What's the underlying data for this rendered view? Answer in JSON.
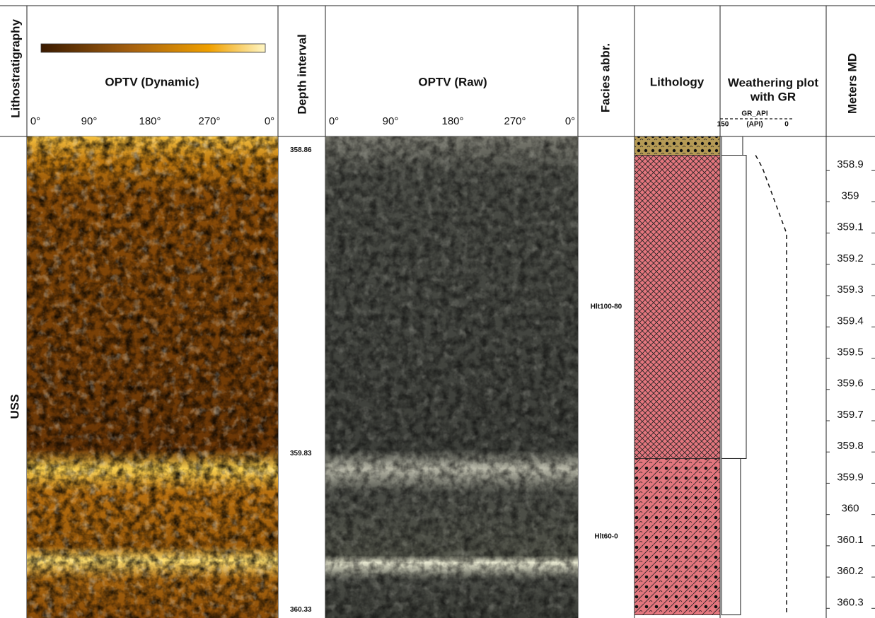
{
  "headers": {
    "lithostratigraphy": "Lithostratigraphy",
    "optv_dynamic": "OPTV (Dynamic)",
    "depth_interval": "Depth interval",
    "optv_raw": "OPTV (Raw)",
    "facies": "Facies abbr.",
    "lithology": "Lithology",
    "weathering": [
      "Weathering plot",
      "with GR"
    ],
    "meters": "Meters MD"
  },
  "unit": "USS",
  "azimuth_ticks": [
    "0°",
    "90°",
    "180°",
    "270°",
    "0°"
  ],
  "depth_lim": [
    358.8,
    360.34
  ],
  "depth_intervals": [
    358.86,
    359.83,
    360.33
  ],
  "facies": [
    {
      "label": "Hlt100-80",
      "top": 358.86,
      "bottom": 359.83
    },
    {
      "label": "Hlt60-0",
      "top": 359.83,
      "bottom": 360.33
    }
  ],
  "lithology": [
    {
      "top": 358.8,
      "bottom": 358.86,
      "pattern": "sand"
    },
    {
      "top": 358.86,
      "bottom": 359.83,
      "pattern": "cross"
    },
    {
      "top": 359.83,
      "bottom": 360.33,
      "pattern": "dots"
    }
  ],
  "weathering": {
    "xlim": [
      0,
      5
    ],
    "intervals": [
      {
        "top": 358.8,
        "bottom": 358.86,
        "value": 1.07
      },
      {
        "top": 358.86,
        "bottom": 359.83,
        "value": 1.25
      },
      {
        "top": 359.83,
        "bottom": 360.33,
        "value": 0.96
      }
    ]
  },
  "gr": {
    "title": "GR_API",
    "unit": "(API)",
    "xlim": [
      150,
      0
    ],
    "xticks": [
      150,
      0
    ],
    "depth": [
      358.86,
      358.9,
      359.11,
      360.33
    ],
    "values": [
      73,
      57,
      0,
      0
    ]
  },
  "md_ticks": [
    358.9,
    359,
    359.1,
    359.2,
    359.3,
    359.4,
    359.5,
    359.6,
    359.7,
    359.8,
    359.9,
    360,
    360.1,
    360.2,
    360.3
  ]
}
